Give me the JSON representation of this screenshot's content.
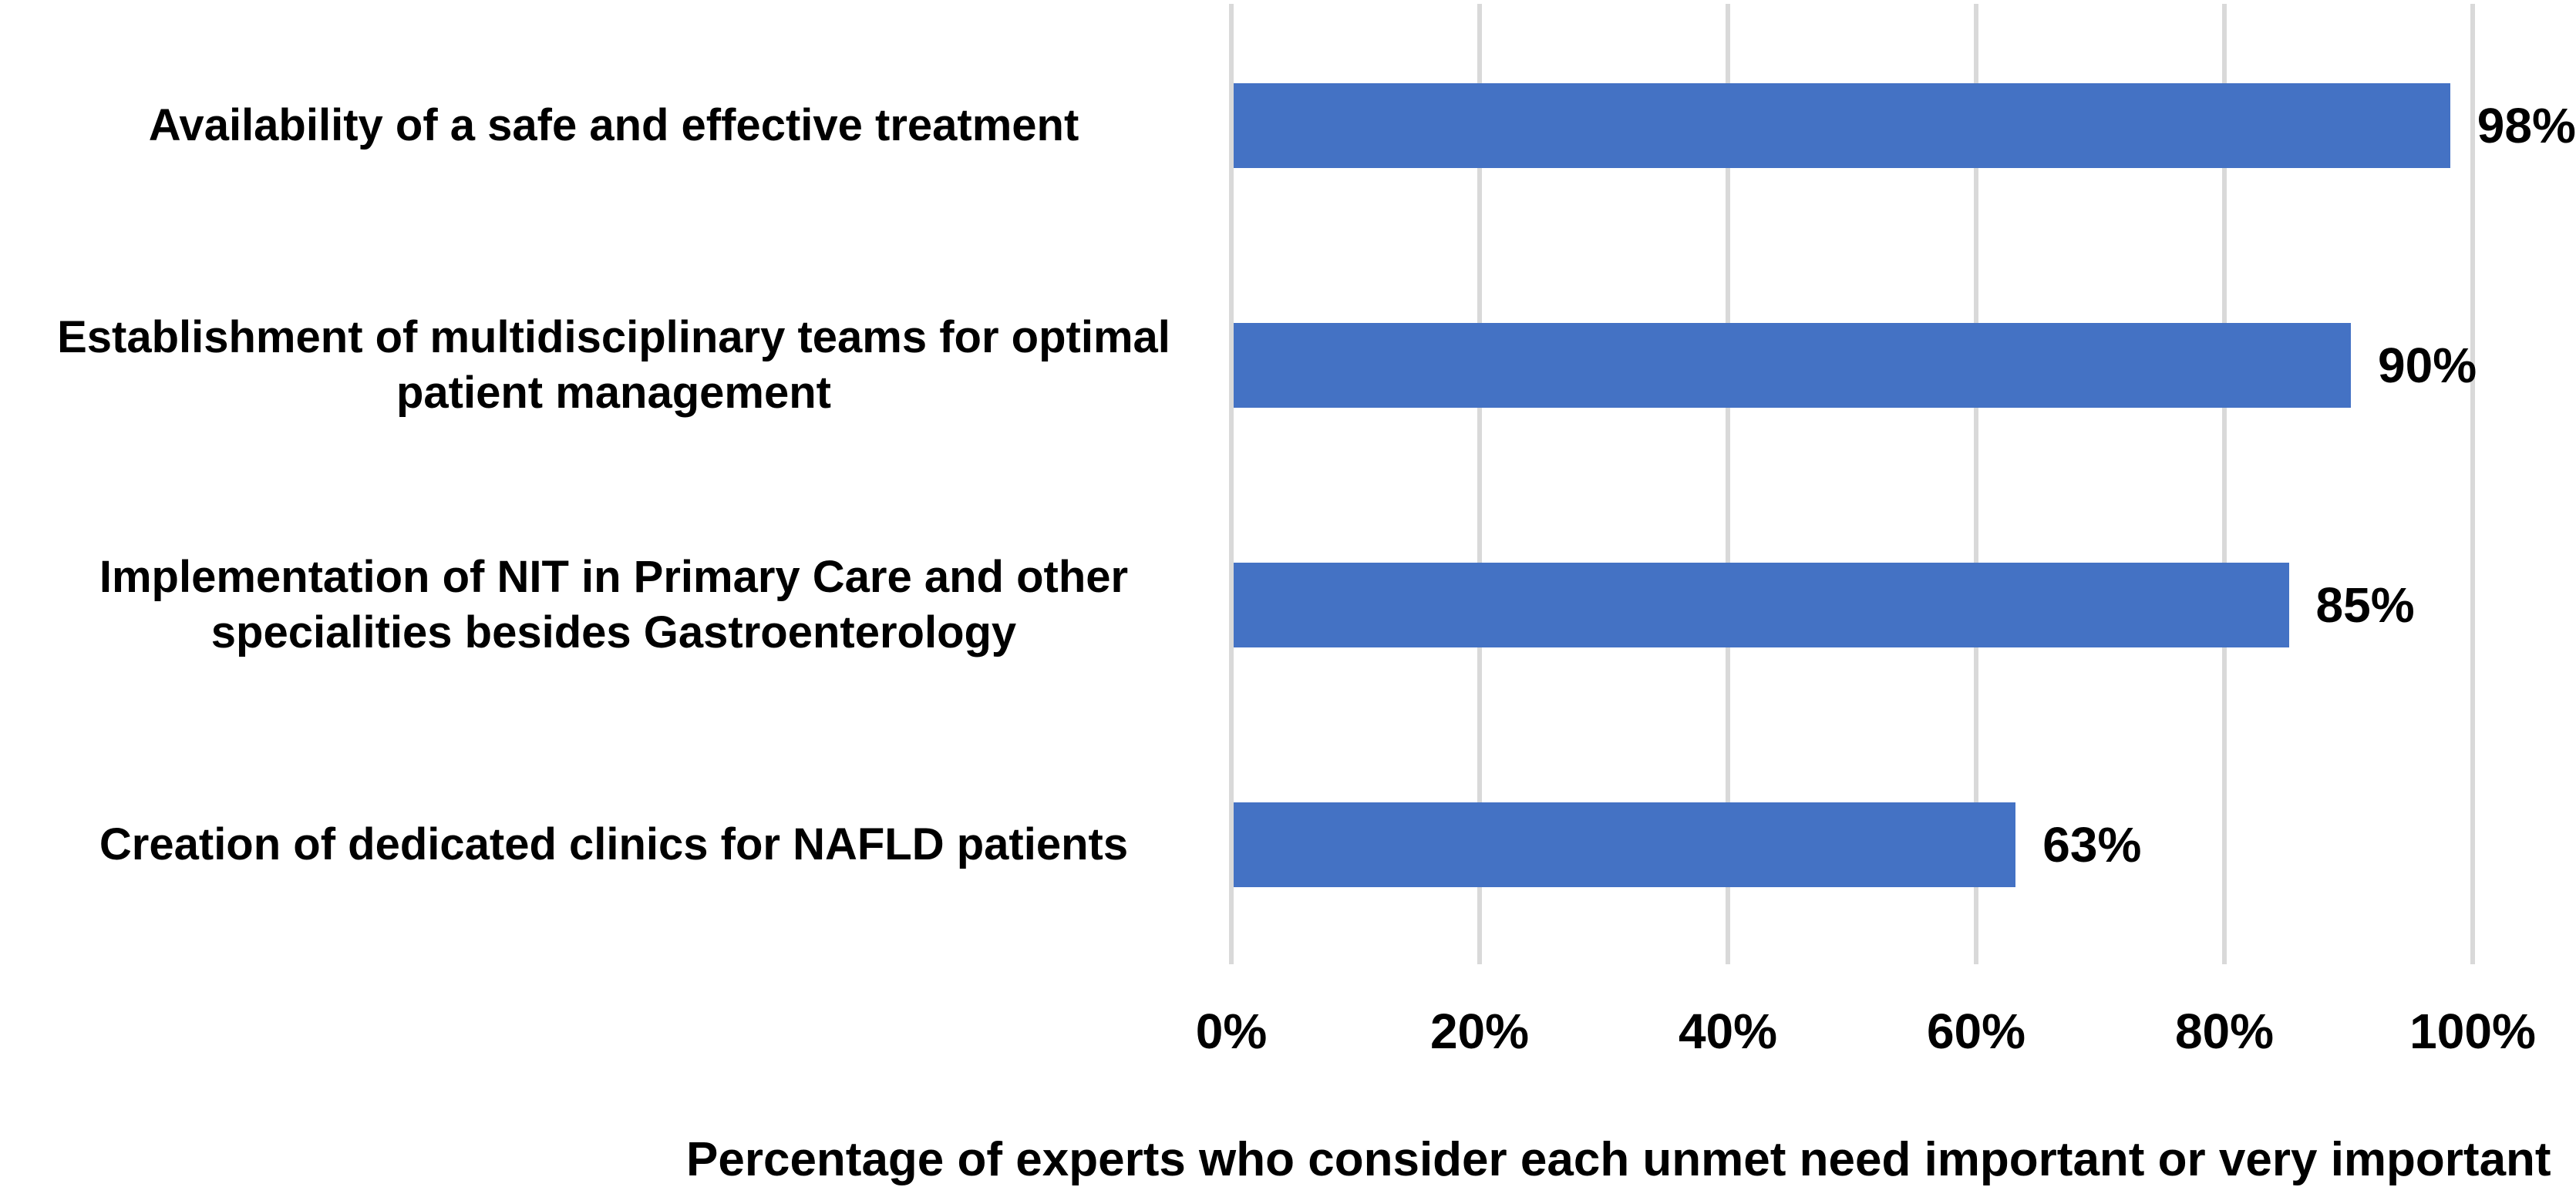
{
  "chart_data": {
    "type": "bar",
    "orientation": "horizontal",
    "title": "",
    "categories": [
      "Availability of a safe and effective treatment",
      "Establishment of multidisciplinary teams for optimal patient management",
      "Implementation of NIT in Primary Care and other specialities besides Gastroenterology",
      "Creation of dedicated clinics for NAFLD patients"
    ],
    "categories_display": [
      "Availability of a safe and effective treatment",
      "Establishment of multidisciplinary teams for optimal\npatient management",
      "Implementation of NIT in Primary Care and other\nspecialities besides Gastroenterology",
      "Creation of dedicated clinics for NAFLD patients"
    ],
    "values": [
      98,
      90,
      85,
      63
    ],
    "data_labels": [
      "98%",
      "90%",
      "85%",
      "63%"
    ],
    "xlabel": "Percentage of experts who consider each unmet need important or very important",
    "x_ticks": [
      "0%",
      "20%",
      "40%",
      "60%",
      "80%",
      "100%"
    ],
    "xlim": [
      0,
      100
    ],
    "grid": "vertical gridlines every 20%, no axis lines",
    "legend": "none",
    "colors": {
      "bar": "#4472C4",
      "gridline": "#D9D9D9",
      "text": "#000000",
      "background": "#FFFFFF"
    }
  }
}
